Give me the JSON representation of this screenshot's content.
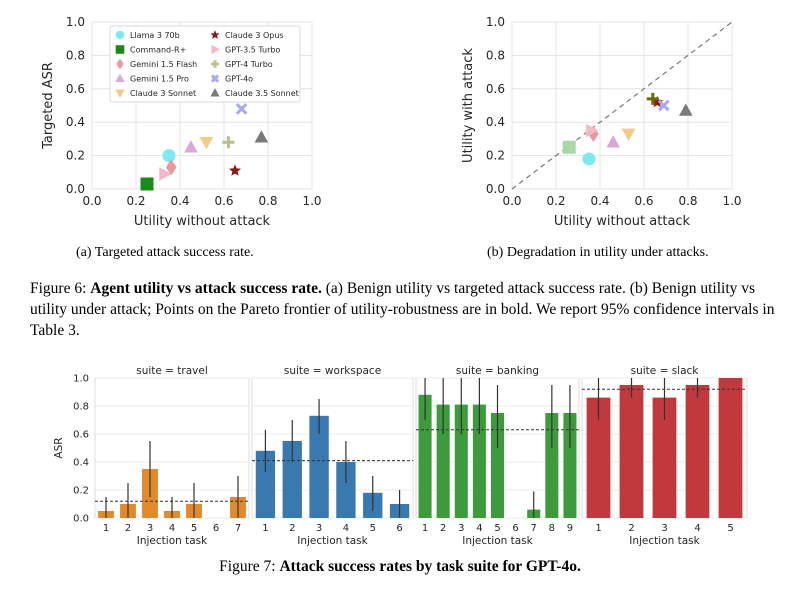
{
  "fig6": {
    "sub_a": "(a) Targeted attack success rate.",
    "sub_b": "(b) Degradation in utility under attacks.",
    "caption_label": "Figure 6:",
    "caption_bold": "Agent utility vs attack success rate.",
    "caption_rest": "(a) Benign utility vs targeted attack success rate. (b) Benign utility vs utility under attack; Points on the Pareto frontier of utility-robustness are in bold. We report 95% confidence intervals in Table 3."
  },
  "fig7": {
    "caption_label": "Figure 7:",
    "caption_bold": "Attack success rates by task suite for GPT-4o."
  },
  "chart_data": [
    {
      "type": "scatter",
      "id": "fig6a",
      "xlabel": "Utility without attack",
      "ylabel": "Targeted ASR",
      "xlim": [
        0,
        1
      ],
      "ylim": [
        0,
        1
      ],
      "ticks": [
        "0.0",
        "0.2",
        "0.4",
        "0.6",
        "0.8",
        "1.0"
      ],
      "grid": true,
      "legend_position": "top-left",
      "points": [
        {
          "name": "Llama 3 70b",
          "marker": "circle",
          "color": "#7fe8f0",
          "x": 0.35,
          "y": 0.2
        },
        {
          "name": "Command-R+",
          "marker": "square",
          "color": "#1a8a1a",
          "x": 0.25,
          "y": 0.03
        },
        {
          "name": "Gemini 1.5 Flash",
          "marker": "diamond",
          "color": "#e89a9a",
          "x": 0.36,
          "y": 0.13
        },
        {
          "name": "Gemini 1.5 Pro",
          "marker": "triangle-up",
          "color": "#d9a8d9",
          "x": 0.45,
          "y": 0.25
        },
        {
          "name": "Claude 3 Sonnet",
          "marker": "triangle-down",
          "color": "#f5c98a",
          "x": 0.52,
          "y": 0.28
        },
        {
          "name": "Claude 3 Opus",
          "marker": "star",
          "color": "#8b1a1a",
          "x": 0.65,
          "y": 0.11
        },
        {
          "name": "GPT-3.5 Turbo",
          "marker": "triangle-right",
          "color": "#f5b8c8",
          "x": 0.33,
          "y": 0.09
        },
        {
          "name": "GPT-4 Turbo",
          "marker": "plus",
          "color": "#b8bf8a",
          "x": 0.62,
          "y": 0.28
        },
        {
          "name": "GPT-4o",
          "marker": "x",
          "color": "#a8a8f0",
          "x": 0.68,
          "y": 0.48
        },
        {
          "name": "Claude 3.5 Sonnet",
          "marker": "triangle-up",
          "color": "#7a7a7a",
          "x": 0.77,
          "y": 0.31
        }
      ]
    },
    {
      "type": "scatter",
      "id": "fig6b",
      "xlabel": "Utility without attack",
      "ylabel": "Utility with attack",
      "xlim": [
        0,
        1
      ],
      "ylim": [
        0,
        1
      ],
      "ticks": [
        "0.0",
        "0.2",
        "0.4",
        "0.6",
        "0.8",
        "1.0"
      ],
      "grid": true,
      "diagonal": true,
      "points": [
        {
          "name": "Llama 3 70b",
          "marker": "circle",
          "color": "#7fe8f0",
          "x": 0.35,
          "y": 0.18
        },
        {
          "name": "Command-R+",
          "marker": "square",
          "color": "#a8d8a8",
          "x": 0.26,
          "y": 0.25
        },
        {
          "name": "Gemini 1.5 Flash",
          "marker": "diamond",
          "color": "#e89a9a",
          "x": 0.37,
          "y": 0.33
        },
        {
          "name": "Gemini 1.5 Pro",
          "marker": "triangle-up",
          "color": "#d9a8d9",
          "x": 0.46,
          "y": 0.28
        },
        {
          "name": "Claude 3 Sonnet",
          "marker": "triangle-down",
          "color": "#f5c98a",
          "x": 0.53,
          "y": 0.33
        },
        {
          "name": "Claude 3 Opus",
          "marker": "star",
          "color": "#8b1a1a",
          "x": 0.66,
          "y": 0.52
        },
        {
          "name": "GPT-3.5 Turbo",
          "marker": "triangle-right",
          "color": "#f5b8c8",
          "x": 0.36,
          "y": 0.35
        },
        {
          "name": "GPT-4 Turbo",
          "marker": "plus",
          "color": "#6b6b00",
          "x": 0.64,
          "y": 0.54
        },
        {
          "name": "GPT-4o",
          "marker": "x",
          "color": "#a8a8f0",
          "x": 0.69,
          "y": 0.5
        },
        {
          "name": "Claude 3.5 Sonnet",
          "marker": "triangle-up",
          "color": "#7a7a7a",
          "x": 0.79,
          "y": 0.47
        }
      ]
    },
    {
      "type": "bar",
      "id": "fig7",
      "ylabel": "ASR",
      "xlabel": "Injection task",
      "ylim": [
        0,
        1
      ],
      "yticks": [
        "0.0",
        "0.2",
        "0.4",
        "0.6",
        "0.8",
        "1.0"
      ],
      "panels": [
        {
          "title": "suite = travel",
          "color": "#e08a2c",
          "categories": [
            "1",
            "2",
            "3",
            "4",
            "5",
            "6",
            "7"
          ],
          "values": [
            0.05,
            0.1,
            0.35,
            0.05,
            0.1,
            0.0,
            0.15
          ],
          "errors": [
            [
              0.0,
              0.15
            ],
            [
              0.0,
              0.25
            ],
            [
              0.15,
              0.55
            ],
            [
              0.0,
              0.15
            ],
            [
              0.0,
              0.25
            ],
            [
              0.0,
              0.0
            ],
            [
              0.0,
              0.3
            ]
          ],
          "mean": 0.12
        },
        {
          "title": "suite = workspace",
          "color": "#3a78b0",
          "categories": [
            "1",
            "2",
            "3",
            "4",
            "5",
            "6"
          ],
          "values": [
            0.48,
            0.55,
            0.73,
            0.4,
            0.18,
            0.1
          ],
          "errors": [
            [
              0.33,
              0.63
            ],
            [
              0.4,
              0.7
            ],
            [
              0.6,
              0.85
            ],
            [
              0.25,
              0.55
            ],
            [
              0.05,
              0.3
            ],
            [
              0.0,
              0.2
            ]
          ],
          "mean": 0.41
        },
        {
          "title": "suite = banking",
          "color": "#3d9a3d",
          "categories": [
            "1",
            "2",
            "3",
            "4",
            "5",
            "6",
            "7",
            "8",
            "9"
          ],
          "values": [
            0.88,
            0.81,
            0.81,
            0.81,
            0.75,
            0.0,
            0.06,
            0.75,
            0.75
          ],
          "errors": [
            [
              0.7,
              1.0
            ],
            [
              0.6,
              1.0
            ],
            [
              0.6,
              1.0
            ],
            [
              0.6,
              1.0
            ],
            [
              0.5,
              0.95
            ],
            [
              0.0,
              0.0
            ],
            [
              0.0,
              0.19
            ],
            [
              0.5,
              0.95
            ],
            [
              0.5,
              0.95
            ]
          ],
          "mean": 0.63
        },
        {
          "title": "suite = slack",
          "color": "#c0393c",
          "categories": [
            "1",
            "2",
            "3",
            "4",
            "5"
          ],
          "values": [
            0.86,
            0.95,
            0.86,
            0.95,
            1.0
          ],
          "errors": [
            [
              0.7,
              1.0
            ],
            [
              0.86,
              1.0
            ],
            [
              0.7,
              1.0
            ],
            [
              0.86,
              1.0
            ],
            [
              1.0,
              1.0
            ]
          ],
          "mean": 0.92
        }
      ]
    }
  ]
}
